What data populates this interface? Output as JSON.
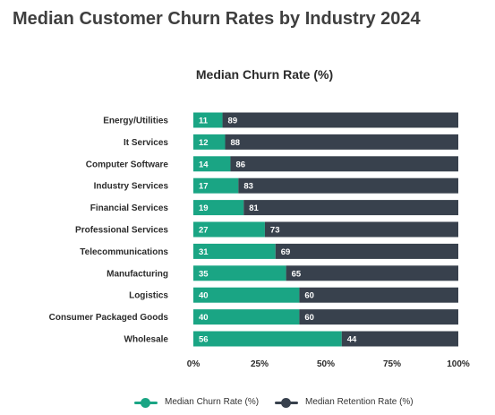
{
  "page": {
    "title": "Median Customer Churn Rates by Industry 2024"
  },
  "chart_data": {
    "type": "bar",
    "orientation": "horizontal",
    "stacked": true,
    "title": "Median Churn Rate (%)",
    "categories": [
      "Energy/Utilities",
      "It Services",
      "Computer Software",
      "Industry Services",
      "Financial Services",
      "Professional Services",
      "Telecommunications",
      "Manufacturing",
      "Logistics",
      "Consumer Packaged Goods",
      "Wholesale"
    ],
    "series": [
      {
        "name": "Median Churn Rate (%)",
        "color": "#1aa584",
        "values": [
          11,
          12,
          14,
          17,
          19,
          27,
          31,
          35,
          40,
          40,
          56
        ]
      },
      {
        "name": "Median Retention Rate (%)",
        "color": "#38414d",
        "values": [
          89,
          88,
          86,
          83,
          81,
          73,
          69,
          65,
          60,
          60,
          44
        ]
      }
    ],
    "xlim": [
      0,
      100
    ],
    "xticks": [
      "0%",
      "25%",
      "50%",
      "75%",
      "100%"
    ],
    "xtick_values": [
      0,
      25,
      50,
      75,
      100
    ],
    "legend_position": "bottom",
    "grid": false
  }
}
